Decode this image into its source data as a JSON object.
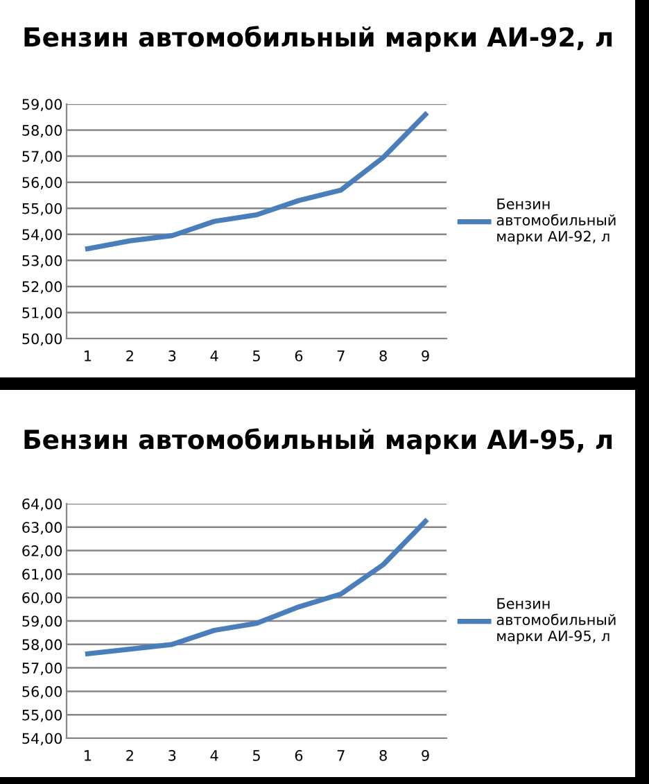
{
  "chart_data": [
    {
      "type": "line",
      "title": "Бензин автомобильный марки АИ-92, л",
      "categories": [
        "1",
        "2",
        "3",
        "4",
        "5",
        "6",
        "7",
        "8",
        "9"
      ],
      "series": [
        {
          "name": "Бензин автомобильный марки АИ-92, л",
          "color": "#4a7ebb",
          "values": [
            53.45,
            53.75,
            53.95,
            54.5,
            54.75,
            55.3,
            55.7,
            56.95,
            58.6
          ]
        }
      ],
      "ylim": [
        50,
        59
      ],
      "yticks": [
        {
          "value": 50,
          "label": "50,00"
        },
        {
          "value": 51,
          "label": "51,00"
        },
        {
          "value": 52,
          "label": "52,00"
        },
        {
          "value": 53,
          "label": "53,00"
        },
        {
          "value": 54,
          "label": "54,00"
        },
        {
          "value": 55,
          "label": "55,00"
        },
        {
          "value": 56,
          "label": "56,00"
        },
        {
          "value": 57,
          "label": "57,00"
        },
        {
          "value": 58,
          "label": "58,00"
        },
        {
          "value": 59,
          "label": "59,00"
        }
      ],
      "grid": "y",
      "legend": "right",
      "marker": "none",
      "line_style": "solid"
    },
    {
      "type": "line",
      "title": "Бензин автомобильный марки АИ-95, л",
      "categories": [
        "1",
        "2",
        "3",
        "4",
        "5",
        "6",
        "7",
        "8",
        "9"
      ],
      "series": [
        {
          "name": "Бензин автомобильный марки АИ-95, л",
          "color": "#4a7ebb",
          "values": [
            57.6,
            57.8,
            58.0,
            58.6,
            58.9,
            59.6,
            60.15,
            61.4,
            63.25
          ]
        }
      ],
      "ylim": [
        54,
        64
      ],
      "yticks": [
        {
          "value": 54,
          "label": "54,00"
        },
        {
          "value": 55,
          "label": "55,00"
        },
        {
          "value": 56,
          "label": "56,00"
        },
        {
          "value": 57,
          "label": "57,00"
        },
        {
          "value": 58,
          "label": "58,00"
        },
        {
          "value": 59,
          "label": "59,00"
        },
        {
          "value": 60,
          "label": "60,00"
        },
        {
          "value": 61,
          "label": "61,00"
        },
        {
          "value": 62,
          "label": "62,00"
        },
        {
          "value": 63,
          "label": "63,00"
        },
        {
          "value": 64,
          "label": "64,00"
        }
      ],
      "grid": "y",
      "legend": "right",
      "marker": "none",
      "line_style": "solid"
    }
  ]
}
